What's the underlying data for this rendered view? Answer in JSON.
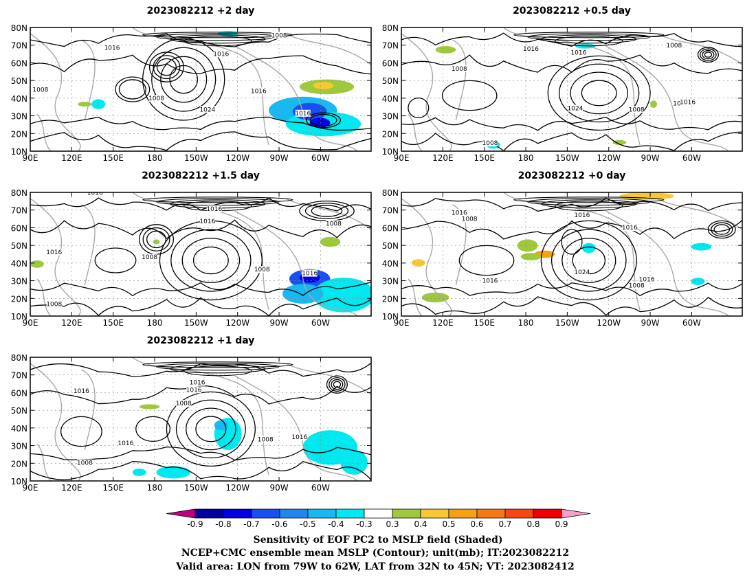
{
  "panels": [
    {
      "title": "2023082212 +2 day",
      "lat_labels": [
        "80N",
        "70N",
        "60N",
        "50N",
        "40N",
        "30N",
        "20N",
        "10N"
      ],
      "lon_labels": [
        "90E",
        "120E",
        "150E",
        "180",
        "150W",
        "120W",
        "90W",
        "60W"
      ],
      "contour_labels": [
        "1016",
        "1016",
        "1008",
        "1008",
        "1008",
        "1024",
        "1016",
        "1016"
      ]
    },
    {
      "title": "2023082212 +0.5 day",
      "lat_labels": [
        "80N",
        "70N",
        "60N",
        "50N",
        "40N",
        "30N",
        "20N",
        "10N"
      ],
      "lon_labels": [
        "90E",
        "120E",
        "150E",
        "180",
        "150W",
        "120W",
        "90W",
        "60W"
      ],
      "contour_labels": [
        "1016",
        "1016",
        "1008",
        "1008",
        "1016",
        "1024",
        "1008",
        "1016",
        "1008"
      ]
    },
    {
      "title": "2023082212 +1.5 day",
      "lat_labels": [
        "80N",
        "70N",
        "60N",
        "50N",
        "40N",
        "30N",
        "20N",
        "10N"
      ],
      "lon_labels": [
        "90E",
        "120E",
        "150E",
        "180",
        "150W",
        "120W",
        "90W",
        "60W"
      ],
      "contour_labels": [
        "1016",
        "1016",
        "1016",
        "1008",
        "1016",
        "1008",
        "1008",
        "1016",
        "1008"
      ]
    },
    {
      "title": "2023082212 +0 day",
      "lat_labels": [
        "80N",
        "70N",
        "60N",
        "50N",
        "40N",
        "30N",
        "20N",
        "10N"
      ],
      "lon_labels": [
        "90E",
        "120E",
        "150E",
        "180",
        "150W",
        "120W",
        "90W",
        "60W"
      ],
      "contour_labels": [
        "1016",
        "1008",
        "1016",
        "1016",
        "1016",
        "1024",
        "1016",
        "1008"
      ]
    },
    {
      "title": "2023082212 +1 day",
      "lat_labels": [
        "80N",
        "70N",
        "60N",
        "50N",
        "40N",
        "30N",
        "20N",
        "10N"
      ],
      "lon_labels": [
        "90E",
        "120E",
        "150E",
        "180",
        "150W",
        "120W",
        "90W",
        "60W"
      ],
      "contour_labels": [
        "1016",
        "1016",
        "1016",
        "1008",
        "1016",
        "1008",
        "1016",
        "1008"
      ]
    }
  ],
  "colorbar": {
    "labels": [
      "-0.9",
      "-0.8",
      "-0.7",
      "-0.6",
      "-0.5",
      "-0.4",
      "-0.3",
      "0.3",
      "0.4",
      "0.5",
      "0.6",
      "0.7",
      "0.8",
      "0.9"
    ],
    "colors": [
      "#c00080",
      "#0000a0",
      "#0000e0",
      "#1850f0",
      "#1e88f0",
      "#18b8f0",
      "#00e8f0",
      "#ffffff",
      "#a0c83c",
      "#f8c832",
      "#f8a014",
      "#f87814",
      "#f84614",
      "#f00000",
      "#f8a0c8"
    ]
  },
  "caption": {
    "line1": "Sensitivity of EOF PC2 to MSLP field (Shaded)",
    "line2": "NCEP+CMC ensemble mean MSLP (Contour); unit(mb); IT:2023082212",
    "line3": "Valid area: LON from 79W to 62W, LAT from 32N to 45N; VT: 2023082412"
  }
}
